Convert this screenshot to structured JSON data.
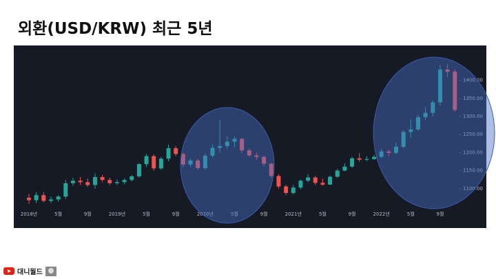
{
  "chart_data": {
    "type": "candlestick",
    "title": "외환(USD/KRW) 최근 5년",
    "categories": [
      "2018년",
      null,
      null,
      null,
      "5월",
      null,
      null,
      null,
      "9월",
      null,
      null,
      null,
      "2019년",
      null,
      null,
      null,
      "5월",
      null,
      null,
      null,
      "9월",
      null,
      null,
      null,
      "2020년",
      null,
      null,
      null,
      "5월",
      null,
      null,
      null,
      "9월",
      null,
      null,
      null,
      "2021년",
      null,
      null,
      null,
      "5월",
      null,
      null,
      null,
      "9월",
      null,
      null,
      null,
      "2022년",
      null,
      null,
      null,
      "5월",
      null,
      null,
      null,
      "9월",
      null,
      null
    ],
    "open": [
      1075,
      1068,
      1082,
      1066,
      1070,
      1078,
      1115,
      1122,
      1118,
      1110,
      1132,
      1124,
      1115,
      1118,
      1124,
      1134,
      1168,
      1190,
      1156,
      1183,
      1212,
      1196,
      1167,
      1178,
      1157,
      1191,
      1213,
      1218,
      1230,
      1238,
      1206,
      1192,
      1188,
      1169,
      1135,
      1106,
      1088,
      1103,
      1122,
      1131,
      1116,
      1111,
      1133,
      1150,
      1161,
      1184,
      1180,
      1182,
      1188,
      1203,
      1199,
      1216,
      1257,
      1264,
      1298,
      1310,
      1339,
      1430,
      1424
    ],
    "high": [
      1085,
      1090,
      1090,
      1078,
      1082,
      1124,
      1130,
      1132,
      1128,
      1142,
      1138,
      1130,
      1125,
      1128,
      1138,
      1170,
      1196,
      1195,
      1188,
      1222,
      1218,
      1200,
      1183,
      1182,
      1198,
      1222,
      1290,
      1245,
      1245,
      1240,
      1212,
      1200,
      1192,
      1172,
      1140,
      1110,
      1110,
      1125,
      1140,
      1135,
      1128,
      1136,
      1155,
      1170,
      1188,
      1198,
      1190,
      1194,
      1210,
      1208,
      1228,
      1262,
      1292,
      1305,
      1326,
      1345,
      1442,
      1445,
      1430
    ],
    "low": [
      1058,
      1060,
      1062,
      1060,
      1064,
      1072,
      1108,
      1110,
      1105,
      1100,
      1118,
      1110,
      1110,
      1112,
      1120,
      1130,
      1160,
      1150,
      1152,
      1176,
      1190,
      1160,
      1160,
      1152,
      1152,
      1186,
      1200,
      1210,
      1215,
      1198,
      1188,
      1180,
      1162,
      1130,
      1100,
      1082,
      1084,
      1098,
      1118,
      1110,
      1108,
      1110,
      1130,
      1148,
      1158,
      1175,
      1176,
      1180,
      1185,
      1190,
      1195,
      1212,
      1240,
      1260,
      1290,
      1300,
      1330,
      1410,
      1312
    ],
    "close": [
      1068,
      1082,
      1066,
      1070,
      1078,
      1115,
      1122,
      1118,
      1110,
      1132,
      1124,
      1115,
      1118,
      1124,
      1134,
      1168,
      1190,
      1156,
      1183,
      1212,
      1196,
      1167,
      1178,
      1157,
      1191,
      1213,
      1218,
      1230,
      1238,
      1206,
      1192,
      1188,
      1169,
      1135,
      1106,
      1088,
      1103,
      1122,
      1131,
      1116,
      1111,
      1133,
      1150,
      1161,
      1184,
      1180,
      1182,
      1188,
      1203,
      1199,
      1216,
      1257,
      1264,
      1298,
      1310,
      1339,
      1430,
      1424,
      1318
    ],
    "up_color": "#26a69a",
    "down_color": "#ef5350",
    "ylim": [
      1050,
      1470
    ],
    "yticks": [
      {
        "value": 1100,
        "label": "1100.00"
      },
      {
        "value": 1150,
        "label": "1150.00"
      },
      {
        "value": 1200,
        "label": "1200.00"
      },
      {
        "value": 1250,
        "label": "1250.00"
      },
      {
        "value": 1300,
        "label": "1300.00"
      },
      {
        "value": 1350,
        "label": "1350.00"
      },
      {
        "value": 1400,
        "label": "1400.00"
      }
    ]
  },
  "footer": {
    "channel": "대니월드"
  }
}
